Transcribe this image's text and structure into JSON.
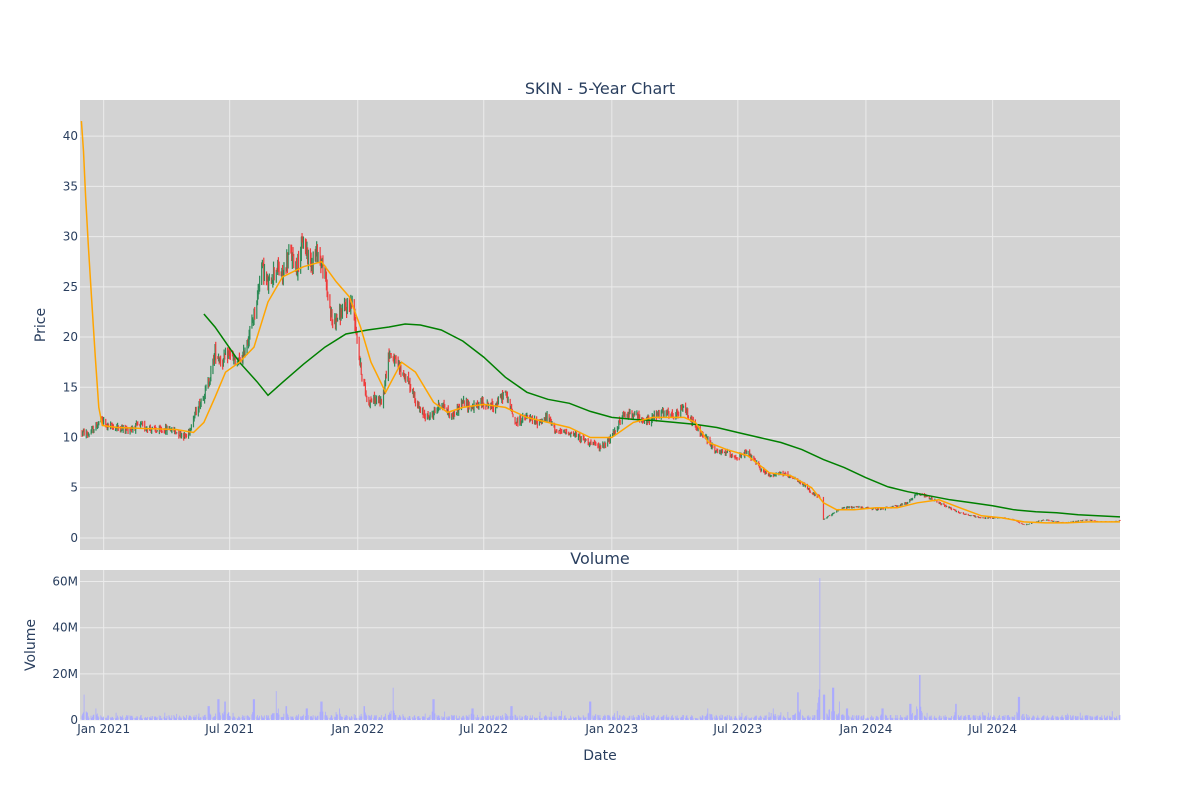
{
  "chart_data": {
    "type": "candlestick",
    "title": "SKIN - 5-Year Chart",
    "xlabel": "Date",
    "price_panel": {
      "ylabel": "Price",
      "ylim": [
        -1.2,
        43.6
      ],
      "yticks": [
        0,
        5,
        10,
        15,
        20,
        25,
        30,
        35,
        40
      ],
      "grid": true,
      "colors": {
        "up": "#2e8b57",
        "down": "#ef3b3b",
        "ma_short": "#ffa500",
        "ma_long": "#008000",
        "background": "#d3d3d3",
        "grid": "#ebebeb"
      },
      "price_path": [
        [
          "2020-12-01",
          10.5
        ],
        [
          "2020-12-10",
          10.3
        ],
        [
          "2020-12-20",
          11.0
        ],
        [
          "2020-12-28",
          11.8
        ],
        [
          "2021-01-05",
          11.2
        ],
        [
          "2021-01-20",
          11.0
        ],
        [
          "2021-02-05",
          10.8
        ],
        [
          "2021-02-20",
          11.2
        ],
        [
          "2021-03-05",
          11.0
        ],
        [
          "2021-03-20",
          10.6
        ],
        [
          "2021-04-05",
          10.9
        ],
        [
          "2021-04-20",
          10.4
        ],
        [
          "2021-05-01",
          10.1
        ],
        [
          "2021-05-10",
          12.0
        ],
        [
          "2021-05-20",
          13.5
        ],
        [
          "2021-06-01",
          15.5
        ],
        [
          "2021-06-10",
          18.5
        ],
        [
          "2021-06-20",
          17.5
        ],
        [
          "2021-07-01",
          18.5
        ],
        [
          "2021-07-10",
          17.2
        ],
        [
          "2021-07-20",
          18.0
        ],
        [
          "2021-08-01",
          21.0
        ],
        [
          "2021-08-10",
          24.0
        ],
        [
          "2021-08-15",
          27.5
        ],
        [
          "2021-08-25",
          25.0
        ],
        [
          "2021-09-05",
          27.0
        ],
        [
          "2021-09-15",
          26.0
        ],
        [
          "2021-09-25",
          28.5
        ],
        [
          "2021-10-05",
          27.0
        ],
        [
          "2021-10-15",
          29.5
        ],
        [
          "2021-10-25",
          27.5
        ],
        [
          "2021-11-05",
          28.5
        ],
        [
          "2021-11-15",
          26.0
        ],
        [
          "2021-11-25",
          21.5
        ],
        [
          "2021-12-10",
          22.5
        ],
        [
          "2021-12-25",
          23.5
        ],
        [
          "2022-01-05",
          17.0
        ],
        [
          "2022-01-15",
          13.5
        ],
        [
          "2022-01-25",
          13.8
        ],
        [
          "2022-02-05",
          13.5
        ],
        [
          "2022-02-15",
          18.5
        ],
        [
          "2022-03-01",
          17.0
        ],
        [
          "2022-03-15",
          15.5
        ],
        [
          "2022-04-01",
          12.5
        ],
        [
          "2022-04-15",
          12.0
        ],
        [
          "2022-05-01",
          13.5
        ],
        [
          "2022-05-15",
          12.0
        ],
        [
          "2022-06-01",
          13.5
        ],
        [
          "2022-06-15",
          13.0
        ],
        [
          "2022-07-01",
          13.5
        ],
        [
          "2022-07-15",
          13.0
        ],
        [
          "2022-08-01",
          14.5
        ],
        [
          "2022-08-15",
          11.5
        ],
        [
          "2022-09-01",
          12.0
        ],
        [
          "2022-09-15",
          11.5
        ],
        [
          "2022-10-01",
          12.0
        ],
        [
          "2022-10-15",
          10.5
        ],
        [
          "2022-11-01",
          10.5
        ],
        [
          "2022-11-15",
          10.0
        ],
        [
          "2022-12-01",
          9.5
        ],
        [
          "2022-12-15",
          9.0
        ],
        [
          "2023-01-01",
          10.0
        ],
        [
          "2023-01-15",
          12.0
        ],
        [
          "2023-02-01",
          12.5
        ],
        [
          "2023-02-15",
          11.5
        ],
        [
          "2023-03-01",
          12.0
        ],
        [
          "2023-03-15",
          12.5
        ],
        [
          "2023-04-01",
          12.0
        ],
        [
          "2023-04-15",
          13.0
        ],
        [
          "2023-05-01",
          11.0
        ],
        [
          "2023-05-15",
          10.0
        ],
        [
          "2023-06-01",
          8.5
        ],
        [
          "2023-06-15",
          8.5
        ],
        [
          "2023-07-01",
          8.0
        ],
        [
          "2023-07-15",
          8.5
        ],
        [
          "2023-08-01",
          7.0
        ],
        [
          "2023-08-15",
          6.2
        ],
        [
          "2023-09-01",
          6.5
        ],
        [
          "2023-09-15",
          6.0
        ],
        [
          "2023-10-01",
          5.5
        ],
        [
          "2023-10-15",
          4.5
        ],
        [
          "2023-10-28",
          4.0
        ],
        [
          "2023-11-01",
          1.8
        ],
        [
          "2023-11-15",
          2.5
        ],
        [
          "2023-12-01",
          3.0
        ],
        [
          "2023-12-15",
          3.1
        ],
        [
          "2024-01-01",
          3.0
        ],
        [
          "2024-01-15",
          2.8
        ],
        [
          "2024-02-01",
          3.0
        ],
        [
          "2024-02-15",
          3.2
        ],
        [
          "2024-03-01",
          3.5
        ],
        [
          "2024-03-15",
          4.5
        ],
        [
          "2024-04-01",
          4.0
        ],
        [
          "2024-04-15",
          3.5
        ],
        [
          "2024-05-01",
          3.0
        ],
        [
          "2024-05-15",
          2.5
        ],
        [
          "2024-06-01",
          2.2
        ],
        [
          "2024-06-15",
          2.0
        ],
        [
          "2024-07-01",
          2.0
        ],
        [
          "2024-07-15",
          2.0
        ],
        [
          "2024-08-01",
          1.8
        ],
        [
          "2024-08-15",
          1.3
        ],
        [
          "2024-09-01",
          1.6
        ],
        [
          "2024-09-15",
          1.8
        ],
        [
          "2024-10-01",
          1.6
        ],
        [
          "2024-10-15",
          1.5
        ],
        [
          "2024-11-01",
          1.7
        ],
        [
          "2024-11-15",
          1.8
        ],
        [
          "2024-12-01",
          1.6
        ],
        [
          "2024-12-15",
          1.6
        ],
        [
          "2024-12-31",
          1.7
        ]
      ],
      "ma_short": [
        [
          "2020-11-30",
          41.5
        ],
        [
          "2020-12-03",
          38.5
        ],
        [
          "2020-12-06",
          34.0
        ],
        [
          "2020-12-10",
          29.0
        ],
        [
          "2020-12-15",
          23.5
        ],
        [
          "2020-12-20",
          18.0
        ],
        [
          "2020-12-25",
          13.0
        ],
        [
          "2020-12-30",
          11.2
        ],
        [
          "2021-01-20",
          11.0
        ],
        [
          "2021-03-01",
          10.9
        ],
        [
          "2021-04-15",
          10.8
        ],
        [
          "2021-05-10",
          10.5
        ],
        [
          "2021-05-25",
          11.5
        ],
        [
          "2021-06-10",
          14.0
        ],
        [
          "2021-06-25",
          16.5
        ],
        [
          "2021-07-15",
          17.5
        ],
        [
          "2021-08-05",
          19.0
        ],
        [
          "2021-08-25",
          23.5
        ],
        [
          "2021-09-15",
          26.0
        ],
        [
          "2021-10-15",
          27.0
        ],
        [
          "2021-11-10",
          27.5
        ],
        [
          "2021-12-01",
          25.5
        ],
        [
          "2021-12-20",
          24.0
        ],
        [
          "2022-01-05",
          21.0
        ],
        [
          "2022-01-20",
          17.5
        ],
        [
          "2022-02-10",
          14.5
        ],
        [
          "2022-03-05",
          17.5
        ],
        [
          "2022-03-25",
          16.5
        ],
        [
          "2022-04-20",
          13.5
        ],
        [
          "2022-05-10",
          12.5
        ],
        [
          "2022-06-01",
          13.0
        ],
        [
          "2022-07-01",
          13.3
        ],
        [
          "2022-08-01",
          13.0
        ],
        [
          "2022-09-01",
          12.0
        ],
        [
          "2022-10-01",
          11.5
        ],
        [
          "2022-11-01",
          11.0
        ],
        [
          "2022-12-01",
          10.0
        ],
        [
          "2023-01-01",
          10.0
        ],
        [
          "2023-02-01",
          11.5
        ],
        [
          "2023-03-01",
          12.0
        ],
        [
          "2023-04-15",
          12.0
        ],
        [
          "2023-05-01",
          11.5
        ],
        [
          "2023-05-20",
          9.5
        ],
        [
          "2023-06-15",
          8.8
        ],
        [
          "2023-07-15",
          8.2
        ],
        [
          "2023-08-15",
          6.5
        ],
        [
          "2023-09-15",
          6.2
        ],
        [
          "2023-10-15",
          5.0
        ],
        [
          "2023-11-01",
          3.5
        ],
        [
          "2023-11-20",
          2.8
        ],
        [
          "2023-12-15",
          2.8
        ],
        [
          "2024-01-15",
          3.0
        ],
        [
          "2024-02-15",
          3.0
        ],
        [
          "2024-03-15",
          3.5
        ],
        [
          "2024-04-15",
          3.8
        ],
        [
          "2024-05-15",
          3.0
        ],
        [
          "2024-06-15",
          2.2
        ],
        [
          "2024-07-15",
          2.0
        ],
        [
          "2024-08-15",
          1.6
        ],
        [
          "2024-09-15",
          1.5
        ],
        [
          "2024-10-15",
          1.5
        ],
        [
          "2024-11-15",
          1.6
        ],
        [
          "2024-12-31",
          1.6
        ]
      ],
      "ma_long": [
        [
          "2021-05-25",
          22.3
        ],
        [
          "2021-06-10",
          21.0
        ],
        [
          "2021-06-25",
          19.5
        ],
        [
          "2021-07-15",
          17.5
        ],
        [
          "2021-08-10",
          15.5
        ],
        [
          "2021-08-25",
          14.2
        ],
        [
          "2021-09-15",
          15.5
        ],
        [
          "2021-10-15",
          17.3
        ],
        [
          "2021-11-15",
          19.0
        ],
        [
          "2021-12-15",
          20.3
        ],
        [
          "2022-01-15",
          20.7
        ],
        [
          "2022-02-15",
          21.0
        ],
        [
          "2022-03-10",
          21.3
        ],
        [
          "2022-04-01",
          21.2
        ],
        [
          "2022-05-01",
          20.7
        ],
        [
          "2022-06-01",
          19.6
        ],
        [
          "2022-07-01",
          18.0
        ],
        [
          "2022-08-01",
          16.0
        ],
        [
          "2022-09-01",
          14.5
        ],
        [
          "2022-10-01",
          13.8
        ],
        [
          "2022-11-01",
          13.4
        ],
        [
          "2022-12-01",
          12.6
        ],
        [
          "2023-01-01",
          12.0
        ],
        [
          "2023-02-01",
          11.8
        ],
        [
          "2023-03-01",
          11.7
        ],
        [
          "2023-04-01",
          11.5
        ],
        [
          "2023-05-01",
          11.3
        ],
        [
          "2023-06-01",
          11.0
        ],
        [
          "2023-07-01",
          10.5
        ],
        [
          "2023-08-01",
          10.0
        ],
        [
          "2023-09-01",
          9.5
        ],
        [
          "2023-10-01",
          8.8
        ],
        [
          "2023-11-01",
          7.8
        ],
        [
          "2023-12-01",
          7.0
        ],
        [
          "2024-01-01",
          6.0
        ],
        [
          "2024-02-01",
          5.1
        ],
        [
          "2024-03-01",
          4.6
        ],
        [
          "2024-04-01",
          4.2
        ],
        [
          "2024-05-01",
          3.8
        ],
        [
          "2024-06-01",
          3.5
        ],
        [
          "2024-07-01",
          3.2
        ],
        [
          "2024-08-01",
          2.8
        ],
        [
          "2024-09-01",
          2.6
        ],
        [
          "2024-10-01",
          2.5
        ],
        [
          "2024-11-01",
          2.3
        ],
        [
          "2024-12-31",
          2.1
        ]
      ]
    },
    "volume_panel": {
      "title": "Volume",
      "ylabel": "Volume",
      "ylim": [
        0,
        65000000
      ],
      "ytick_labels": [
        "0",
        "20M",
        "40M",
        "60M"
      ],
      "yticks": [
        0,
        20000000,
        40000000,
        60000000
      ],
      "bar_color": "#aaaaff",
      "spikes": [
        [
          "2020-12-05",
          11000000
        ],
        [
          "2020-12-20",
          5000000
        ],
        [
          "2021-06-01",
          6000000
        ],
        [
          "2021-06-15",
          9000000
        ],
        [
          "2021-06-25",
          8000000
        ],
        [
          "2021-08-05",
          9000000
        ],
        [
          "2021-09-05",
          12500000
        ],
        [
          "2021-09-20",
          6000000
        ],
        [
          "2021-10-20",
          5000000
        ],
        [
          "2021-11-10",
          8000000
        ],
        [
          "2021-12-05",
          5000000
        ],
        [
          "2022-01-10",
          6000000
        ],
        [
          "2022-02-20",
          14000000
        ],
        [
          "2022-04-20",
          9000000
        ],
        [
          "2022-06-15",
          5000000
        ],
        [
          "2022-08-10",
          6000000
        ],
        [
          "2022-12-01",
          8000000
        ],
        [
          "2023-05-20",
          5000000
        ],
        [
          "2023-08-20",
          5000000
        ],
        [
          "2023-09-25",
          12000000
        ],
        [
          "2023-10-28",
          61500000
        ],
        [
          "2023-11-02",
          11000000
        ],
        [
          "2023-11-15",
          14000000
        ],
        [
          "2023-11-25",
          8000000
        ],
        [
          "2023-12-05",
          5000000
        ],
        [
          "2024-01-25",
          5000000
        ],
        [
          "2024-03-05",
          7000000
        ],
        [
          "2024-03-18",
          19500000
        ],
        [
          "2024-05-10",
          7000000
        ],
        [
          "2024-08-08",
          10000000
        ]
      ]
    },
    "x_axis": {
      "range": [
        "2020-11-28",
        "2024-12-31"
      ],
      "ticks": [
        {
          "date": "2021-01-01",
          "label": "Jan 2021"
        },
        {
          "date": "2021-07-01",
          "label": "Jul 2021"
        },
        {
          "date": "2022-01-01",
          "label": "Jan 2022"
        },
        {
          "date": "2022-07-01",
          "label": "Jul 2022"
        },
        {
          "date": "2023-01-01",
          "label": "Jan 2023"
        },
        {
          "date": "2023-07-01",
          "label": "Jul 2023"
        },
        {
          "date": "2024-01-01",
          "label": "Jan 2024"
        },
        {
          "date": "2024-07-01",
          "label": "Jul 2024"
        }
      ]
    },
    "gap": [
      "2023-10-29",
      "2023-10-31"
    ]
  }
}
